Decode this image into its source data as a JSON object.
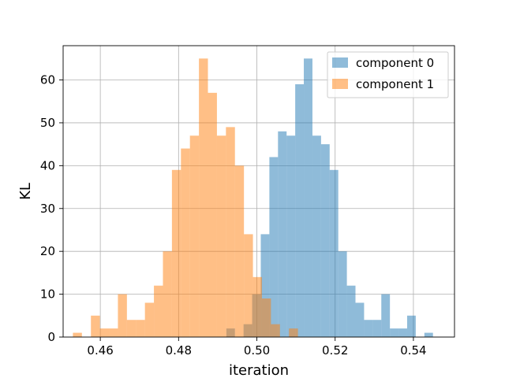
{
  "chart_data": {
    "type": "histogram",
    "title": "",
    "xlabel": "iteration",
    "ylabel": "KL",
    "xlim": [
      0.4505,
      0.5505
    ],
    "ylim": [
      0,
      68
    ],
    "xticks": [
      0.46,
      0.48,
      0.5,
      0.52,
      0.54
    ],
    "xtick_labels": [
      "0.46",
      "0.48",
      "0.50",
      "0.52",
      "0.54"
    ],
    "yticks": [
      0,
      10,
      20,
      30,
      40,
      50,
      60
    ],
    "ytick_labels": [
      "0",
      "10",
      "20",
      "30",
      "40",
      "50",
      "60"
    ],
    "grid": true,
    "legend_position": "top-right",
    "series": [
      {
        "name": "component 0",
        "color": "#1f77b4",
        "alpha": 0.5,
        "bin_edges": [
          0.4922,
          0.4944,
          0.4966,
          0.4988,
          0.501,
          0.5032,
          0.5054,
          0.5076,
          0.5098,
          0.512,
          0.5142,
          0.5164,
          0.5186,
          0.5208,
          0.523,
          0.5252,
          0.5274,
          0.5296,
          0.5318,
          0.534,
          0.5362,
          0.5384,
          0.5406,
          0.5428,
          0.545,
          0.5472
        ],
        "counts": [
          2,
          0,
          3,
          10,
          24,
          42,
          48,
          47,
          59,
          65,
          47,
          45,
          39,
          20,
          12,
          8,
          4,
          4,
          10,
          2,
          2,
          5,
          0,
          1,
          0
        ]
      },
      {
        "name": "component 1",
        "color": "#ff7f0e",
        "alpha": 0.5,
        "bin_edges": [
          0.453,
          0.4553,
          0.4576,
          0.4599,
          0.4622,
          0.4645,
          0.4668,
          0.4691,
          0.4714,
          0.4737,
          0.476,
          0.4783,
          0.4806,
          0.4829,
          0.4852,
          0.4875,
          0.4898,
          0.4921,
          0.4944,
          0.4967,
          0.499,
          0.5013,
          0.5036,
          0.5059,
          0.5082,
          0.5105
        ],
        "counts": [
          1,
          0,
          5,
          2,
          2,
          10,
          4,
          4,
          8,
          12,
          20,
          39,
          44,
          47,
          65,
          57,
          47,
          49,
          40,
          24,
          14,
          9,
          3,
          0,
          2
        ]
      }
    ]
  }
}
